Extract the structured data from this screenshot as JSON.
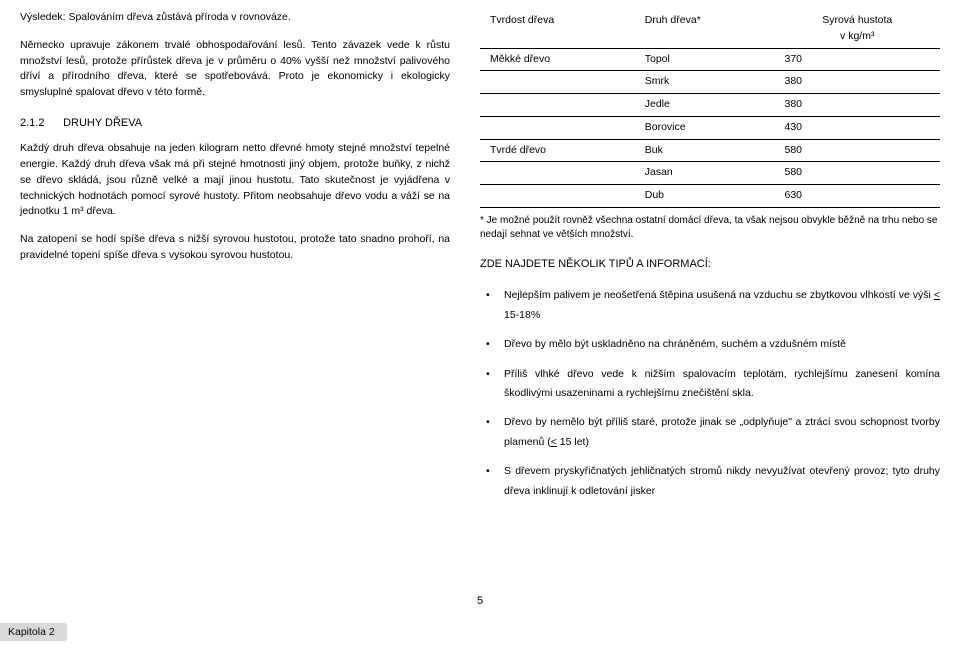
{
  "left": {
    "p1": "Výsledek: Spalováním dřeva zůstává příroda v rovnováze.",
    "p2": "Německo upravuje zákonem trvalé obhospodařování lesů. Tento závazek vede k růstu množství lesů, protože přírůstek dřeva je v průměru o 40% vyšší než množství palivového dříví a přírodního dřeva, které se spotřebovává. Proto je ekonomicky i ekologicky smysluplné spalovat dřevo v této formě.",
    "sec_num": "2.1.2",
    "sec_title": "DRUHY DŘEVA",
    "p3": "Každý druh dřeva obsahuje na jeden kilogram netto dřevné hmoty stejné množství tepelné energie. Každý druh dřeva však má při stejné hmotnosti jiný objem, protože buňky, z nichž se dřevo skládá, jsou různě velké a mají jinou hustotu. Tato skutečnost je vyjádřena v technických hodnotách pomocí syrové hustoty. Přitom neobsahuje dřevo vodu a váží se na jednotku 1 m³ dřeva.",
    "p4": "Na zatopení se hodí spíše dřeva s nižší syrovou hustotou, protože tato snadno prohoří, na pravidelné topení spíše dřeva s vysokou syrovou hustotou."
  },
  "table": {
    "h1": "Tvrdost dřeva",
    "h2": "Druh dřeva*",
    "h3a": "Syrová hustota",
    "h3b": "v kg/m³",
    "rows": [
      {
        "hardness": "Měkké dřevo",
        "kind": "Topol",
        "density": "370"
      },
      {
        "hardness": "",
        "kind": "Smrk",
        "density": "380"
      },
      {
        "hardness": "",
        "kind": "Jedle",
        "density": "380"
      },
      {
        "hardness": "",
        "kind": "Borovice",
        "density": "430"
      },
      {
        "hardness": "Tvrdé dřevo",
        "kind": "Buk",
        "density": "580"
      },
      {
        "hardness": "",
        "kind": "Jasan",
        "density": "580"
      },
      {
        "hardness": "",
        "kind": "Dub",
        "density": "630"
      }
    ],
    "footnote": "* Je možné použít rovněž všechna ostatní domácí dřeva, ta však nejsou obvykle běžně na trhu nebo se nedají sehnat ve větších množství."
  },
  "tips": {
    "heading": "ZDE NAJDETE NĚKOLIK TIPŮ A INFORMACÍ:",
    "items": [
      "Nejlepším palivem je neošetřená štěpina usušená na vzduchu se zbytkovou vlhkostí ve výši < 15-18%",
      "Dřevo by mělo být uskladněno na chráněném, suchém a vzdušném místě",
      "Příliš vlhké dřevo vede k nižším spalovacím teplotám, rychlejšímu zanesení komína škodlivými usazeninami a rychlejšímu znečištění skla.",
      "Dřevo by nemělo být příliš staré, protože jinak se „odplyňuje\" a ztrácí svou schopnost tvorby plamenů (< 15 let)",
      "S dřevem pryskyřičnatých jehličnatých stromů nikdy nevyužívat otevřený provoz; tyto druhy dřeva inklinují k odletování jisker"
    ]
  },
  "page_number": "5",
  "chapter": "Kapitola 2"
}
